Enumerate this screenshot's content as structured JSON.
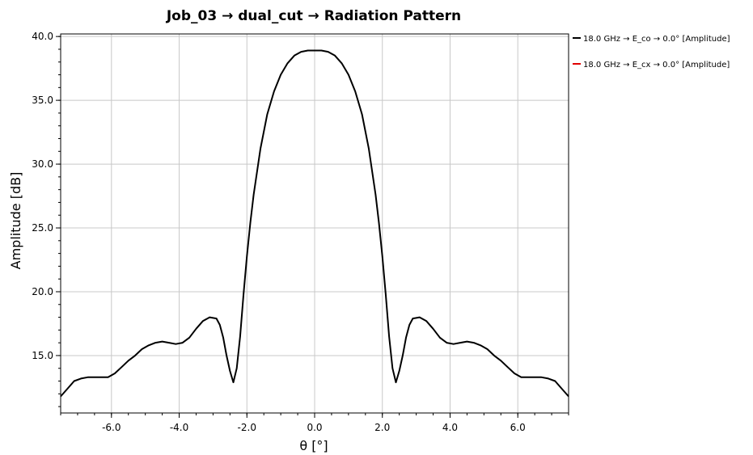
{
  "chart_data": {
    "type": "line",
    "title": "Job_03 → dual_cut → Radiation Pattern",
    "xlabel": "θ [°]",
    "ylabel": "Amplitude [dB]",
    "xlim": [
      -7.5,
      7.5
    ],
    "ylim": [
      10.5,
      40.2
    ],
    "xticks": [
      -6.0,
      -4.0,
      -2.0,
      0.0,
      2.0,
      4.0,
      6.0
    ],
    "xtick_labels": [
      "-6.0",
      "-4.0",
      "-2.0",
      "0.0",
      "2.0",
      "4.0",
      "6.0"
    ],
    "yticks": [
      15.0,
      20.0,
      25.0,
      30.0,
      35.0,
      40.0
    ],
    "ytick_labels": [
      "15.0",
      "20.0",
      "25.0",
      "30.0",
      "35.0",
      "40.0"
    ],
    "grid": true,
    "legend_position": "right",
    "series": [
      {
        "name": "18.0 GHz → E_co → 0.0° [Amplitude]",
        "color": "#000000",
        "points": [
          [
            -7.5,
            11.8
          ],
          [
            -7.3,
            12.4
          ],
          [
            -7.1,
            13.0
          ],
          [
            -6.9,
            13.2
          ],
          [
            -6.7,
            13.3
          ],
          [
            -6.5,
            13.3
          ],
          [
            -6.3,
            13.3
          ],
          [
            -6.1,
            13.3
          ],
          [
            -5.9,
            13.6
          ],
          [
            -5.7,
            14.1
          ],
          [
            -5.5,
            14.6
          ],
          [
            -5.3,
            15.0
          ],
          [
            -5.1,
            15.5
          ],
          [
            -4.9,
            15.8
          ],
          [
            -4.7,
            16.0
          ],
          [
            -4.5,
            16.1
          ],
          [
            -4.3,
            16.0
          ],
          [
            -4.1,
            15.9
          ],
          [
            -3.9,
            16.0
          ],
          [
            -3.7,
            16.4
          ],
          [
            -3.5,
            17.1
          ],
          [
            -3.3,
            17.7
          ],
          [
            -3.1,
            18.0
          ],
          [
            -2.9,
            17.9
          ],
          [
            -2.8,
            17.4
          ],
          [
            -2.7,
            16.4
          ],
          [
            -2.6,
            15.0
          ],
          [
            -2.5,
            13.8
          ],
          [
            -2.4,
            12.9
          ],
          [
            -2.3,
            14.0
          ],
          [
            -2.2,
            16.5
          ],
          [
            -2.1,
            19.8
          ],
          [
            -2.0,
            22.8
          ],
          [
            -1.9,
            25.4
          ],
          [
            -1.8,
            27.6
          ],
          [
            -1.6,
            31.2
          ],
          [
            -1.4,
            33.9
          ],
          [
            -1.2,
            35.7
          ],
          [
            -1.0,
            37.0
          ],
          [
            -0.8,
            37.9
          ],
          [
            -0.6,
            38.5
          ],
          [
            -0.4,
            38.8
          ],
          [
            -0.2,
            38.9
          ],
          [
            0.0,
            38.9
          ],
          [
            0.2,
            38.9
          ],
          [
            0.4,
            38.8
          ],
          [
            0.6,
            38.5
          ],
          [
            0.8,
            37.9
          ],
          [
            1.0,
            37.0
          ],
          [
            1.2,
            35.7
          ],
          [
            1.4,
            33.9
          ],
          [
            1.6,
            31.2
          ],
          [
            1.8,
            27.6
          ],
          [
            1.9,
            25.4
          ],
          [
            2.0,
            22.8
          ],
          [
            2.1,
            19.8
          ],
          [
            2.2,
            16.5
          ],
          [
            2.3,
            14.0
          ],
          [
            2.4,
            12.9
          ],
          [
            2.5,
            13.8
          ],
          [
            2.6,
            15.0
          ],
          [
            2.7,
            16.4
          ],
          [
            2.8,
            17.4
          ],
          [
            2.9,
            17.9
          ],
          [
            3.1,
            18.0
          ],
          [
            3.3,
            17.7
          ],
          [
            3.5,
            17.1
          ],
          [
            3.7,
            16.4
          ],
          [
            3.9,
            16.0
          ],
          [
            4.1,
            15.9
          ],
          [
            4.3,
            16.0
          ],
          [
            4.5,
            16.1
          ],
          [
            4.7,
            16.0
          ],
          [
            4.9,
            15.8
          ],
          [
            5.1,
            15.5
          ],
          [
            5.3,
            15.0
          ],
          [
            5.5,
            14.6
          ],
          [
            5.7,
            14.1
          ],
          [
            5.9,
            13.6
          ],
          [
            6.1,
            13.3
          ],
          [
            6.3,
            13.3
          ],
          [
            6.5,
            13.3
          ],
          [
            6.7,
            13.3
          ],
          [
            6.9,
            13.2
          ],
          [
            7.1,
            13.0
          ],
          [
            7.3,
            12.4
          ],
          [
            7.5,
            11.8
          ]
        ]
      },
      {
        "name": "18.0 GHz → E_cx → 0.0° [Amplitude]",
        "color": "#e00000",
        "points": []
      }
    ]
  }
}
